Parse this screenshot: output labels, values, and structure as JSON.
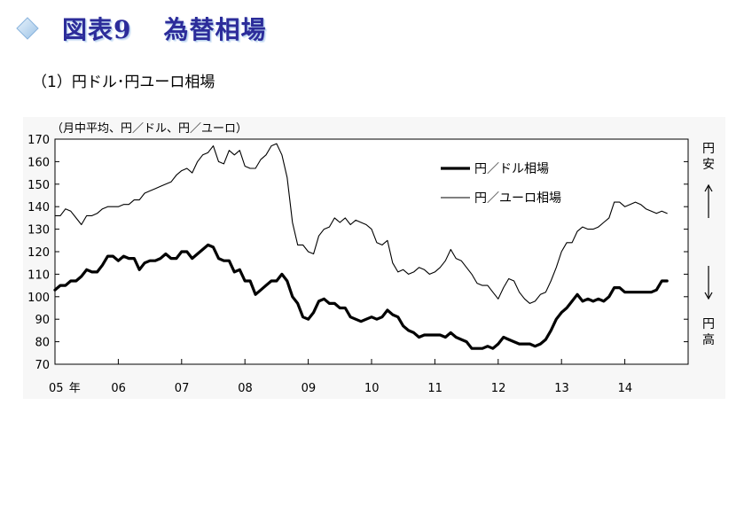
{
  "header": {
    "title_num": "図表9",
    "title": "為替相場",
    "subtitle": "（1）円ドル･円ユーロ相場",
    "accent": "#2c2c9a"
  },
  "chart_data": {
    "type": "line",
    "unit_label": "（月中平均、円／ドル、円／ユーロ）",
    "ylim": [
      70,
      170
    ],
    "yticks": [
      70,
      80,
      90,
      100,
      110,
      120,
      130,
      140,
      150,
      160,
      170
    ],
    "x_start": "2005-01",
    "x_end": "2014-12",
    "xticks": [
      {
        "label": "05",
        "month": "2005-01"
      },
      {
        "label": "年",
        "month": "2005-05"
      },
      {
        "label": "06",
        "month": "2006-01"
      },
      {
        "label": "07",
        "month": "2007-01"
      },
      {
        "label": "08",
        "month": "2008-01"
      },
      {
        "label": "09",
        "month": "2009-01"
      },
      {
        "label": "10",
        "month": "2010-01"
      },
      {
        "label": "11",
        "month": "2011-01"
      },
      {
        "label": "12",
        "month": "2012-01"
      },
      {
        "label": "13",
        "month": "2013-01"
      },
      {
        "label": "14",
        "month": "2014-01"
      }
    ],
    "grid": false,
    "legend_position": "top-right",
    "side_labels": {
      "top": [
        "円",
        "安"
      ],
      "top_arrow": "↑",
      "bottom_arrow": "↓",
      "bottom": [
        "円",
        "高"
      ]
    },
    "series": [
      {
        "name": "円／ドル相場",
        "color": "#000000",
        "style": "thick",
        "values": [
          [
            0,
            103
          ],
          [
            1,
            105
          ],
          [
            2,
            105
          ],
          [
            3,
            107
          ],
          [
            4,
            107
          ],
          [
            5,
            109
          ],
          [
            6,
            112
          ],
          [
            7,
            111
          ],
          [
            8,
            111
          ],
          [
            9,
            114
          ],
          [
            10,
            118
          ],
          [
            11,
            118
          ],
          [
            12,
            116
          ],
          [
            13,
            118
          ],
          [
            14,
            117
          ],
          [
            15,
            117
          ],
          [
            16,
            112
          ],
          [
            17,
            115
          ],
          [
            18,
            116
          ],
          [
            19,
            116
          ],
          [
            20,
            117
          ],
          [
            21,
            119
          ],
          [
            22,
            117
          ],
          [
            23,
            117
          ],
          [
            24,
            120
          ],
          [
            25,
            120
          ],
          [
            26,
            117
          ],
          [
            27,
            119
          ],
          [
            28,
            121
          ],
          [
            29,
            123
          ],
          [
            30,
            122
          ],
          [
            31,
            117
          ],
          [
            32,
            116
          ],
          [
            33,
            116
          ],
          [
            34,
            111
          ],
          [
            35,
            112
          ],
          [
            36,
            107
          ],
          [
            37,
            107
          ],
          [
            38,
            101
          ],
          [
            39,
            103
          ],
          [
            40,
            105
          ],
          [
            41,
            107
          ],
          [
            42,
            107
          ],
          [
            43,
            110
          ],
          [
            44,
            107
          ],
          [
            45,
            100
          ],
          [
            46,
            97
          ],
          [
            47,
            91
          ],
          [
            48,
            90
          ],
          [
            49,
            93
          ],
          [
            50,
            98
          ],
          [
            51,
            99
          ],
          [
            52,
            97
          ],
          [
            53,
            97
          ],
          [
            54,
            95
          ],
          [
            55,
            95
          ],
          [
            56,
            91
          ],
          [
            57,
            90
          ],
          [
            58,
            89
          ],
          [
            59,
            90
          ],
          [
            60,
            91
          ],
          [
            61,
            90
          ],
          [
            62,
            91
          ],
          [
            63,
            94
          ],
          [
            64,
            92
          ],
          [
            65,
            91
          ],
          [
            66,
            87
          ],
          [
            67,
            85
          ],
          [
            68,
            84
          ],
          [
            69,
            82
          ],
          [
            70,
            83
          ],
          [
            71,
            83
          ],
          [
            72,
            83
          ],
          [
            73,
            83
          ],
          [
            74,
            82
          ],
          [
            75,
            84
          ],
          [
            76,
            82
          ],
          [
            77,
            81
          ],
          [
            78,
            80
          ],
          [
            79,
            77
          ],
          [
            80,
            77
          ],
          [
            81,
            77
          ],
          [
            82,
            78
          ],
          [
            83,
            77
          ],
          [
            84,
            79
          ],
          [
            85,
            82
          ],
          [
            86,
            81
          ],
          [
            87,
            80
          ],
          [
            88,
            79
          ],
          [
            89,
            79
          ],
          [
            90,
            79
          ],
          [
            91,
            78
          ],
          [
            92,
            79
          ],
          [
            93,
            81
          ],
          [
            94,
            85
          ],
          [
            95,
            90
          ],
          [
            96,
            93
          ],
          [
            97,
            95
          ],
          [
            98,
            98
          ],
          [
            99,
            101
          ],
          [
            100,
            98
          ],
          [
            101,
            99
          ],
          [
            102,
            98
          ],
          [
            103,
            99
          ],
          [
            104,
            98
          ],
          [
            105,
            100
          ],
          [
            106,
            104
          ],
          [
            107,
            104
          ],
          [
            108,
            102
          ],
          [
            109,
            102
          ],
          [
            110,
            102
          ],
          [
            111,
            102
          ],
          [
            112,
            102
          ],
          [
            113,
            102
          ],
          [
            114,
            103
          ],
          [
            115,
            107
          ],
          [
            116,
            107
          ]
        ]
      },
      {
        "name": "円／ユーロ相場",
        "color": "#000000",
        "style": "thin",
        "values": [
          [
            0,
            136
          ],
          [
            1,
            136
          ],
          [
            2,
            139
          ],
          [
            3,
            138
          ],
          [
            4,
            135
          ],
          [
            5,
            132
          ],
          [
            6,
            136
          ],
          [
            7,
            136
          ],
          [
            8,
            137
          ],
          [
            9,
            139
          ],
          [
            10,
            140
          ],
          [
            11,
            140
          ],
          [
            12,
            140
          ],
          [
            13,
            141
          ],
          [
            14,
            141
          ],
          [
            15,
            143
          ],
          [
            16,
            143
          ],
          [
            17,
            146
          ],
          [
            18,
            147
          ],
          [
            19,
            148
          ],
          [
            20,
            149
          ],
          [
            21,
            150
          ],
          [
            22,
            151
          ],
          [
            23,
            154
          ],
          [
            24,
            156
          ],
          [
            25,
            157
          ],
          [
            26,
            155
          ],
          [
            27,
            160
          ],
          [
            28,
            163
          ],
          [
            29,
            164
          ],
          [
            30,
            167
          ],
          [
            31,
            160
          ],
          [
            32,
            159
          ],
          [
            33,
            165
          ],
          [
            34,
            163
          ],
          [
            35,
            165
          ],
          [
            36,
            158
          ],
          [
            37,
            157
          ],
          [
            38,
            157
          ],
          [
            39,
            161
          ],
          [
            40,
            163
          ],
          [
            41,
            167
          ],
          [
            42,
            168
          ],
          [
            43,
            163
          ],
          [
            44,
            153
          ],
          [
            45,
            133
          ],
          [
            46,
            123
          ],
          [
            47,
            123
          ],
          [
            48,
            120
          ],
          [
            49,
            119
          ],
          [
            50,
            127
          ],
          [
            51,
            130
          ],
          [
            52,
            131
          ],
          [
            53,
            135
          ],
          [
            54,
            133
          ],
          [
            55,
            135
          ],
          [
            56,
            132
          ],
          [
            57,
            134
          ],
          [
            58,
            133
          ],
          [
            59,
            132
          ],
          [
            60,
            130
          ],
          [
            61,
            124
          ],
          [
            62,
            123
          ],
          [
            63,
            125
          ],
          [
            64,
            115
          ],
          [
            65,
            111
          ],
          [
            66,
            112
          ],
          [
            67,
            110
          ],
          [
            68,
            111
          ],
          [
            69,
            113
          ],
          [
            70,
            112
          ],
          [
            71,
            110
          ],
          [
            72,
            111
          ],
          [
            73,
            113
          ],
          [
            74,
            116
          ],
          [
            75,
            121
          ],
          [
            76,
            117
          ],
          [
            77,
            116
          ],
          [
            78,
            113
          ],
          [
            79,
            110
          ],
          [
            80,
            106
          ],
          [
            81,
            105
          ],
          [
            82,
            105
          ],
          [
            83,
            102
          ],
          [
            84,
            99
          ],
          [
            85,
            104
          ],
          [
            86,
            108
          ],
          [
            87,
            107
          ],
          [
            88,
            102
          ],
          [
            89,
            99
          ],
          [
            90,
            97
          ],
          [
            91,
            98
          ],
          [
            92,
            101
          ],
          [
            93,
            102
          ],
          [
            94,
            107
          ],
          [
            95,
            113
          ],
          [
            96,
            120
          ],
          [
            97,
            124
          ],
          [
            98,
            124
          ],
          [
            99,
            129
          ],
          [
            100,
            131
          ],
          [
            101,
            130
          ],
          [
            102,
            130
          ],
          [
            103,
            131
          ],
          [
            104,
            133
          ],
          [
            105,
            135
          ],
          [
            106,
            142
          ],
          [
            107,
            142
          ],
          [
            108,
            140
          ],
          [
            109,
            141
          ],
          [
            110,
            142
          ],
          [
            111,
            141
          ],
          [
            112,
            139
          ],
          [
            113,
            138
          ],
          [
            114,
            137
          ],
          [
            115,
            138
          ],
          [
            116,
            137
          ]
        ]
      }
    ]
  }
}
